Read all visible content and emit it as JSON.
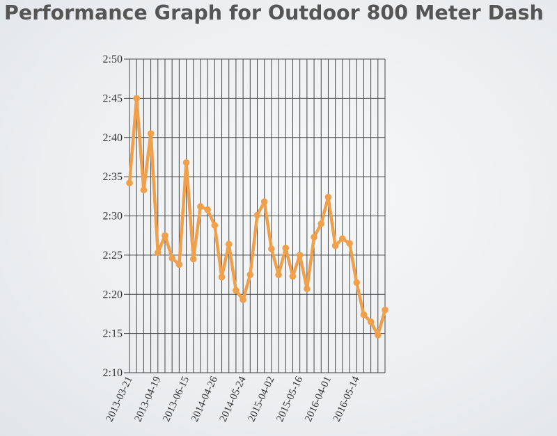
{
  "chart_data": {
    "type": "line",
    "title": "Performance Graph for Outdoor 800 Meter Dash",
    "xlabel": "",
    "ylabel": "",
    "y_tick_labels": [
      "2:10",
      "2:15",
      "2:20",
      "2:25",
      "2:30",
      "2:35",
      "2:40",
      "2:45",
      "2:50"
    ],
    "ylim": [
      130,
      170
    ],
    "x_tick_labels": [
      "2013-03-21",
      "2013-04-19",
      "2013-06-15",
      "2014-04-26",
      "2014-05-24",
      "2015-04-02",
      "2015-05-16",
      "2016-04-01",
      "2016-05-14"
    ],
    "x_tick_label_every": 4,
    "grid": true,
    "line_color": "#f0a04b",
    "series": [
      {
        "values": [
          154.2,
          165.0,
          153.3,
          160.5,
          145.3,
          147.5,
          144.6,
          143.8,
          156.8,
          144.5,
          151.2,
          150.8,
          148.8,
          142.2,
          146.4,
          140.5,
          139.3,
          142.5,
          150.1,
          151.8,
          145.8,
          142.5,
          145.9,
          142.3,
          145.0,
          140.7,
          147.3,
          149.0,
          152.4,
          146.2,
          147.1,
          146.5,
          141.5,
          137.4,
          136.5,
          134.8,
          138.0
        ]
      }
    ]
  }
}
